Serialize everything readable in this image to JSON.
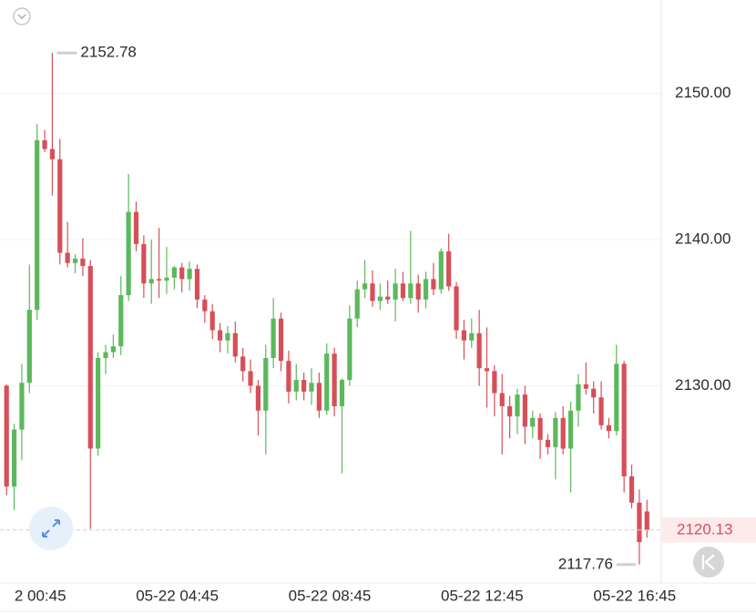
{
  "chart_data": {
    "type": "candlestick",
    "categories": [
      null,
      "2 00:45",
      null,
      null,
      null,
      null,
      null,
      null,
      null,
      null,
      null,
      null,
      null,
      null,
      null,
      null,
      null,
      null,
      null,
      null,
      null,
      "05-22 04:45",
      null,
      null,
      null,
      null,
      null,
      null,
      null,
      null,
      null,
      null,
      null,
      null,
      null,
      null,
      null,
      null,
      null,
      null,
      null,
      "05-22 08:45",
      null,
      null,
      null,
      null,
      null,
      null,
      null,
      null,
      null,
      null,
      null,
      null,
      null,
      null,
      null,
      null,
      null,
      null,
      null,
      "05-22 12:45",
      null,
      null,
      null,
      null,
      null,
      null,
      null,
      null,
      null,
      null,
      null,
      null,
      null,
      null,
      null,
      null,
      null,
      null,
      null,
      "05-22 16:45",
      null,
      null,
      null
    ],
    "open": [
      2130.0,
      2123.1,
      2127.0,
      2130.2,
      2135.2,
      2146.8,
      2146.2,
      2145.5,
      2139.1,
      2138.4,
      2138.7,
      2138.2,
      2125.7,
      2131.9,
      2132.3,
      2132.7,
      2136.2,
      2141.9,
      2139.7,
      2137.0,
      2137.3,
      2137.2,
      2137.4,
      2138.1,
      2137.3,
      2138.0,
      2135.9,
      2135.1,
      2133.8,
      2133.1,
      2133.6,
      2132.0,
      2131.0,
      2130.0,
      2128.3,
      2131.9,
      2134.6,
      2131.7,
      2129.6,
      2130.4,
      2129.6,
      2130.2,
      2128.3,
      2132.2,
      2128.6,
      2130.4,
      2134.6,
      2136.6,
      2137.0,
      2135.8,
      2136.1,
      2135.9,
      2137.0,
      2136.0,
      2137.0,
      2135.9,
      2137.3,
      2136.6,
      2139.2,
      2136.8,
      2133.8,
      2133.1,
      2133.6,
      2131.2,
      2131.0,
      2129.5,
      2128.6,
      2127.9,
      2129.4,
      2127.2,
      2127.8,
      2126.3,
      2125.8,
      2127.8,
      2125.7,
      2128.3,
      2130.1,
      2129.8,
      2129.2,
      2127.3,
      2126.9,
      2131.5,
      2123.8,
      2122.0,
      2121.4
    ],
    "high": [
      2130.1,
      2127.4,
      2131.5,
      2138.3,
      2147.9,
      2147.5,
      2152.78,
      2146.9,
      2141.2,
      2139.0,
      2140.1,
      2138.6,
      2132.3,
      2132.8,
      2133.5,
      2137.5,
      2144.5,
      2142.6,
      2140.3,
      2140.0,
      2140.8,
      2139.5,
      2138.2,
      2138.4,
      2138.5,
      2138.3,
      2136.2,
      2135.6,
      2134.3,
      2134.1,
      2134.4,
      2132.6,
      2131.8,
      2130.4,
      2132.8,
      2136.0,
      2135.0,
      2132.4,
      2131.5,
      2130.9,
      2131.2,
      2130.9,
      2132.9,
      2132.6,
      2130.5,
      2135.5,
      2137.2,
      2138.6,
      2137.9,
      2137.0,
      2137.2,
      2138.0,
      2137.8,
      2140.6,
      2137.6,
      2137.8,
      2138.4,
      2139.4,
      2140.4,
      2137.1,
      2134.5,
      2134.6,
      2135.2,
      2134.0,
      2131.4,
      2130.8,
      2129.3,
      2129.8,
      2130.0,
      2128.3,
      2128.1,
      2126.7,
      2128.2,
      2128.6,
      2128.9,
      2130.8,
      2131.6,
      2130.3,
      2130.3,
      2127.8,
      2132.8,
      2131.7,
      2124.6,
      2122.9,
      2122.2
    ],
    "low": [
      2122.5,
      2121.5,
      2124.9,
      2129.5,
      2134.5,
      2146.0,
      2143.0,
      2138.3,
      2138.1,
      2137.7,
      2137.5,
      2120.2,
      2125.2,
      2130.8,
      2131.9,
      2132.1,
      2135.8,
      2139.2,
      2136.0,
      2135.6,
      2136.0,
      2136.3,
      2136.6,
      2136.4,
      2136.5,
      2135.3,
      2134.3,
      2133.2,
      2132.3,
      2132.2,
      2131.6,
      2130.3,
      2129.5,
      2126.6,
      2125.3,
      2131.2,
      2131.0,
      2128.8,
      2129.0,
      2129.0,
      2128.7,
      2127.8,
      2128.0,
      2127.9,
      2124.0,
      2130.0,
      2134.0,
      2136.0,
      2135.4,
      2135.2,
      2135.6,
      2134.4,
      2135.8,
      2135.6,
      2135.0,
      2135.3,
      2136.2,
      2136.3,
      2136.5,
      2133.2,
      2131.8,
      2132.6,
      2130.0,
      2128.5,
      2127.9,
      2125.3,
      2126.4,
      2126.7,
      2126.0,
      2126.4,
      2125.0,
      2125.3,
      2123.6,
      2125.3,
      2122.7,
      2127.2,
      2129.4,
      2128.1,
      2127.0,
      2126.4,
      2126.6,
      2122.7,
      2121.6,
      2117.76,
      2119.6
    ],
    "close": [
      2123.1,
      2127.0,
      2130.2,
      2135.2,
      2146.8,
      2146.2,
      2145.5,
      2139.1,
      2138.4,
      2138.7,
      2138.2,
      2125.7,
      2131.9,
      2132.3,
      2132.7,
      2136.2,
      2141.9,
      2139.7,
      2137.0,
      2137.3,
      2137.2,
      2137.4,
      2138.1,
      2137.3,
      2138.0,
      2135.9,
      2135.1,
      2133.8,
      2133.1,
      2133.6,
      2132.0,
      2131.0,
      2130.0,
      2128.3,
      2131.9,
      2134.6,
      2131.7,
      2129.6,
      2130.4,
      2129.6,
      2130.2,
      2128.3,
      2132.2,
      2128.6,
      2130.4,
      2134.6,
      2136.6,
      2137.0,
      2135.8,
      2136.1,
      2135.9,
      2137.0,
      2136.0,
      2137.0,
      2135.9,
      2137.3,
      2136.6,
      2139.2,
      2136.8,
      2133.8,
      2133.1,
      2133.6,
      2131.2,
      2131.0,
      2129.5,
      2128.6,
      2127.9,
      2129.4,
      2127.2,
      2127.8,
      2126.3,
      2125.8,
      2127.8,
      2125.7,
      2128.3,
      2130.1,
      2129.8,
      2129.2,
      2127.3,
      2126.9,
      2131.5,
      2123.8,
      2122.0,
      2119.3,
      2120.13
    ],
    "up_color": "#5cb85c",
    "down_color": "#d64f58",
    "ylim": [
      2116.5,
      2156.4
    ],
    "yticks": [
      {
        "value": 2130,
        "label": "2130.00"
      },
      {
        "value": 2140,
        "label": "2140.00"
      },
      {
        "value": 2150,
        "label": "2150.00"
      }
    ],
    "grid": true
  }
}
